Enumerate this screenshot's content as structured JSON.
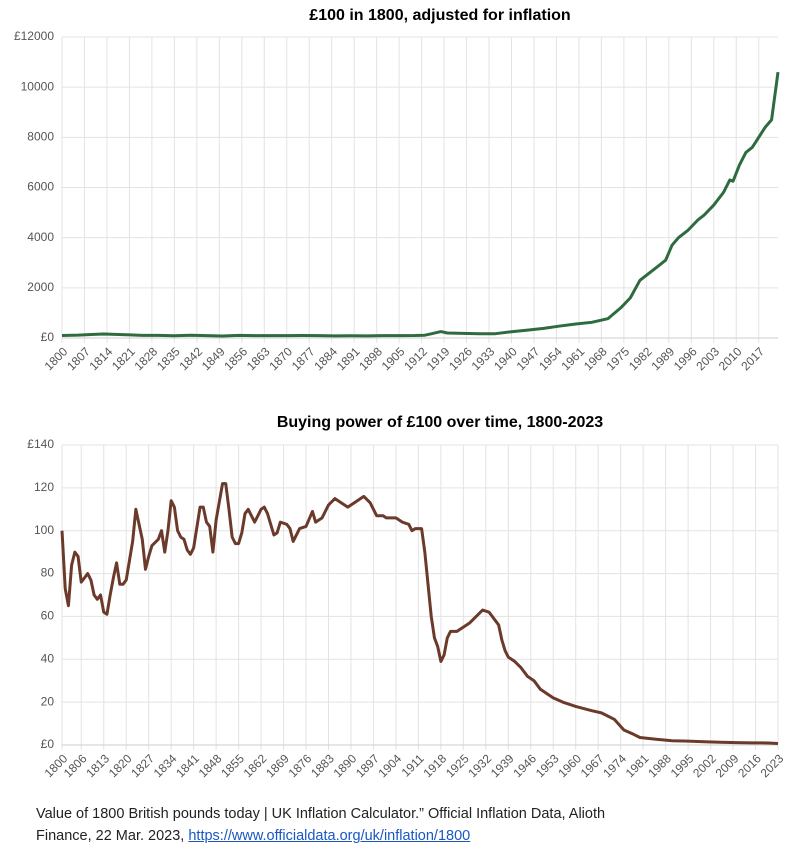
{
  "chart_data": [
    {
      "type": "line",
      "title": "£100 in 1800, adjusted for inflation",
      "x": [
        1800,
        1805,
        1810,
        1813,
        1820,
        1825,
        1830,
        1835,
        1840,
        1845,
        1850,
        1855,
        1860,
        1865,
        1870,
        1875,
        1880,
        1885,
        1890,
        1895,
        1900,
        1905,
        1910,
        1913,
        1915,
        1918,
        1920,
        1925,
        1930,
        1935,
        1940,
        1945,
        1950,
        1955,
        1960,
        1965,
        1970,
        1974,
        1977,
        1980,
        1983,
        1986,
        1988,
        1990,
        1992,
        1995,
        1998,
        2000,
        2003,
        2006,
        2008,
        2009,
        2011,
        2013,
        2015,
        2017,
        2019,
        2021,
        2023
      ],
      "series": [
        {
          "name": "£100 in 1800",
          "color": "#2e6b3f",
          "values": [
            100,
            114,
            143,
            161,
            130,
            104,
            104,
            90,
            112,
            96,
            82,
            106,
            96,
            96,
            97,
            99,
            95,
            87,
            88,
            87,
            93,
            95,
            99,
            111,
            167,
            256,
            200,
            182,
            167,
            172,
            250,
            312,
            385,
            476,
            556,
            625,
            769,
            1200,
            1600,
            2300,
            2600,
            2900,
            3100,
            3700,
            4000,
            4300,
            4700,
            4900,
            5300,
            5800,
            6300,
            6250,
            6900,
            7400,
            7600,
            8000,
            8400,
            8700,
            10600
          ]
        }
      ],
      "xlim": [
        1800,
        2023
      ],
      "xticks": [
        1800,
        1807,
        1814,
        1821,
        1828,
        1835,
        1842,
        1849,
        1856,
        1863,
        1870,
        1877,
        1884,
        1891,
        1898,
        1905,
        1912,
        1919,
        1926,
        1933,
        1940,
        1947,
        1954,
        1961,
        1968,
        1975,
        1982,
        1989,
        1996,
        2003,
        2010,
        2017
      ],
      "ylim": [
        0,
        12000
      ],
      "yticks": [
        {
          "value": 0,
          "label": "£0"
        },
        2000,
        4000,
        6000,
        8000,
        10000,
        {
          "value": 12000,
          "label": "£12000"
        }
      ],
      "grid": true
    },
    {
      "type": "line",
      "title": "Buying power of £100 over time, 1800-2023",
      "x": [
        1800,
        1801,
        1802,
        1803,
        1804,
        1805,
        1806,
        1807,
        1808,
        1809,
        1810,
        1811,
        1812,
        1813,
        1814,
        1815,
        1816,
        1817,
        1818,
        1819,
        1820,
        1822,
        1823,
        1825,
        1826,
        1827,
        1828,
        1830,
        1831,
        1832,
        1833,
        1834,
        1835,
        1836,
        1837,
        1838,
        1839,
        1840,
        1841,
        1843,
        1844,
        1845,
        1846,
        1847,
        1848,
        1850,
        1851,
        1852,
        1853,
        1854,
        1855,
        1856,
        1857,
        1858,
        1860,
        1862,
        1863,
        1864,
        1866,
        1867,
        1868,
        1870,
        1871,
        1872,
        1874,
        1876,
        1878,
        1879,
        1881,
        1883,
        1885,
        1887,
        1889,
        1891,
        1894,
        1896,
        1898,
        1900,
        1901,
        1904,
        1906,
        1908,
        1909,
        1910,
        1912,
        1913,
        1914,
        1915,
        1916,
        1917,
        1918,
        1919,
        1920,
        1921,
        1923,
        1925,
        1927,
        1929,
        1931,
        1933,
        1935,
        1936,
        1937,
        1938,
        1939,
        1941,
        1943,
        1945,
        1947,
        1949,
        1951,
        1953,
        1956,
        1960,
        1965,
        1968,
        1972,
        1975,
        1978,
        1980,
        1985,
        1990,
        1995,
        2000,
        2005,
        2010,
        2015,
        2020,
        2023
      ],
      "series": [
        {
          "name": "Buying power of £100",
          "color": "#6b3a2a",
          "values": [
            100,
            73,
            65,
            84,
            90,
            88,
            76,
            78,
            80,
            77,
            70,
            68,
            70,
            62,
            61,
            70,
            78,
            85,
            75,
            75,
            77,
            95,
            110,
            96,
            82,
            88,
            93,
            96,
            100,
            90,
            100,
            114,
            111,
            100,
            97,
            96,
            91,
            89,
            92,
            111,
            111,
            104,
            102,
            90,
            105,
            122,
            122,
            110,
            97,
            94,
            94,
            99,
            108,
            110,
            104,
            110,
            111,
            108,
            98,
            99,
            104,
            103,
            101,
            95,
            101,
            102,
            109,
            104,
            106,
            112,
            115,
            113,
            111,
            113,
            116,
            113,
            107,
            107,
            106,
            106,
            104,
            103,
            100,
            101,
            101,
            90,
            75,
            60,
            50,
            46,
            39,
            42,
            50,
            53,
            53,
            55,
            57,
            60,
            63,
            62,
            58,
            56,
            49,
            44,
            41,
            39,
            36,
            32,
            30,
            26,
            24,
            22,
            20,
            18,
            16,
            15,
            12,
            7,
            5,
            3.5,
            2.7,
            2,
            1.8,
            1.5,
            1.3,
            1.1,
            1,
            0.95,
            0.7
          ]
        }
      ],
      "xlim": [
        1800,
        2023
      ],
      "xticks": [
        1800,
        1806,
        1813,
        1820,
        1827,
        1834,
        1841,
        1848,
        1855,
        1862,
        1869,
        1876,
        1883,
        1890,
        1897,
        1904,
        1911,
        1918,
        1925,
        1932,
        1939,
        1946,
        1953,
        1960,
        1967,
        1974,
        1981,
        1988,
        1995,
        2002,
        2009,
        2016,
        2023
      ],
      "ylim": [
        0,
        140
      ],
      "yticks": [
        {
          "value": 0,
          "label": "£0"
        },
        20,
        40,
        60,
        80,
        100,
        120,
        {
          "value": 140,
          "label": "£140"
        }
      ],
      "grid": true
    }
  ],
  "citation": {
    "text": "Value of 1800 British pounds today | UK Inflation Calculator.” Official Inflation Data, Alioth Finance, 22 Mar. 2023,",
    "link": "https://www.officialdata.org/uk/inflation/1800"
  }
}
